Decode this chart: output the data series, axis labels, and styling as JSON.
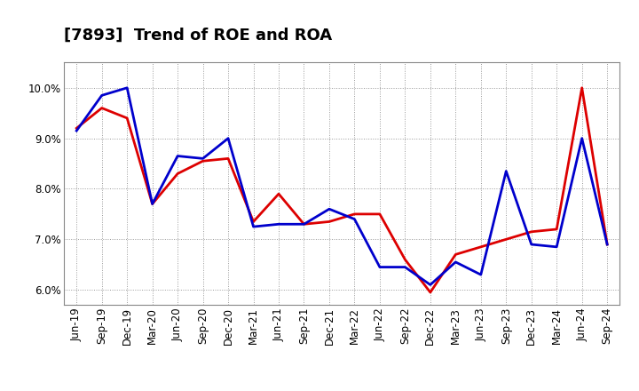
{
  "title": "[7893]  Trend of ROE and ROA",
  "labels": [
    "Jun-19",
    "Sep-19",
    "Dec-19",
    "Mar-20",
    "Jun-20",
    "Sep-20",
    "Dec-20",
    "Mar-21",
    "Jun-21",
    "Sep-21",
    "Dec-21",
    "Mar-22",
    "Jun-22",
    "Sep-22",
    "Dec-22",
    "Mar-23",
    "Jun-23",
    "Sep-23",
    "Dec-23",
    "Mar-24",
    "Jun-24",
    "Sep-24"
  ],
  "ROE": [
    9.2,
    9.6,
    9.4,
    7.7,
    8.3,
    8.55,
    8.6,
    7.35,
    7.9,
    7.3,
    7.35,
    7.5,
    7.5,
    6.6,
    5.95,
    6.7,
    6.85,
    7.0,
    7.15,
    7.2,
    10.0,
    6.9
  ],
  "ROA": [
    9.15,
    9.85,
    10.0,
    7.7,
    8.65,
    8.6,
    9.0,
    7.25,
    7.3,
    7.3,
    7.6,
    7.4,
    6.45,
    6.45,
    6.1,
    6.55,
    6.3,
    8.35,
    6.9,
    6.85,
    9.0,
    6.9
  ],
  "ROE_color": "#dd0000",
  "ROA_color": "#0000cc",
  "background_color": "#ffffff",
  "plot_background": "#ffffff",
  "grid_color": "#999999",
  "ylim": [
    5.7,
    10.5
  ],
  "yticks": [
    6.0,
    7.0,
    8.0,
    9.0,
    10.0
  ],
  "line_width": 2.0,
  "title_fontsize": 13,
  "tick_fontsize": 8.5,
  "legend_fontsize": 10
}
